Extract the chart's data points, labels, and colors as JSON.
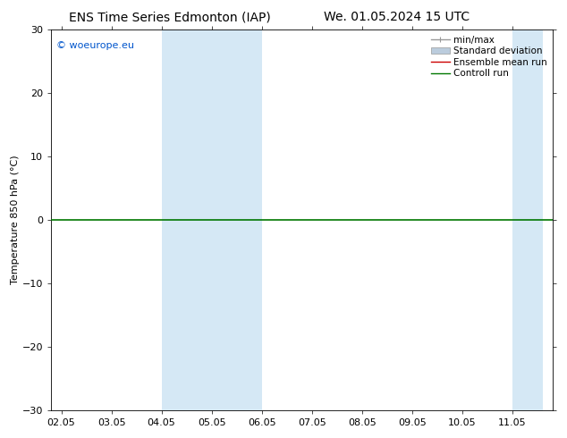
{
  "title_left": "ENS Time Series Edmonton (IAP)",
  "title_right": "We. 01.05.2024 15 UTC",
  "ylabel": "Temperature 850 hPa (°C)",
  "watermark": "© woeurope.eu",
  "watermark_color": "#0055cc",
  "ylim": [
    -30,
    30
  ],
  "yticks": [
    -30,
    -20,
    -10,
    0,
    10,
    20,
    30
  ],
  "xtick_labels": [
    "02.05",
    "03.05",
    "04.05",
    "05.05",
    "06.05",
    "07.05",
    "08.05",
    "09.05",
    "10.05",
    "11.05"
  ],
  "xtick_positions": [
    0,
    1,
    2,
    3,
    4,
    5,
    6,
    7,
    8,
    9
  ],
  "xlim_start": -0.2,
  "xlim_end": 9.8,
  "shaded_bands": [
    {
      "x_start": 2,
      "x_end": 2.5,
      "color": "#cfe2f3"
    },
    {
      "x_start": 3,
      "x_end": 4,
      "color": "#cfe2f3"
    },
    {
      "x_start": 9,
      "x_end": 9.5,
      "color": "#cfe2f3"
    }
  ],
  "hline_y": 0,
  "hline_color": "#007700",
  "hline_linewidth": 1.2,
  "background_color": "#ffffff",
  "plot_bg_color": "#ffffff",
  "legend_items": [
    {
      "label": "min/max",
      "color": "#999999",
      "lw": 1.0,
      "linestyle": "-"
    },
    {
      "label": "Standard deviation",
      "color": "#bbccdd",
      "lw": 5,
      "linestyle": "-"
    },
    {
      "label": "Ensemble mean run",
      "color": "#cc0000",
      "lw": 1.0,
      "linestyle": "-"
    },
    {
      "label": "Controll run",
      "color": "#007700",
      "lw": 1.0,
      "linestyle": "-"
    }
  ],
  "title_fontsize": 10,
  "tick_fontsize": 8,
  "ylabel_fontsize": 8,
  "watermark_fontsize": 8
}
